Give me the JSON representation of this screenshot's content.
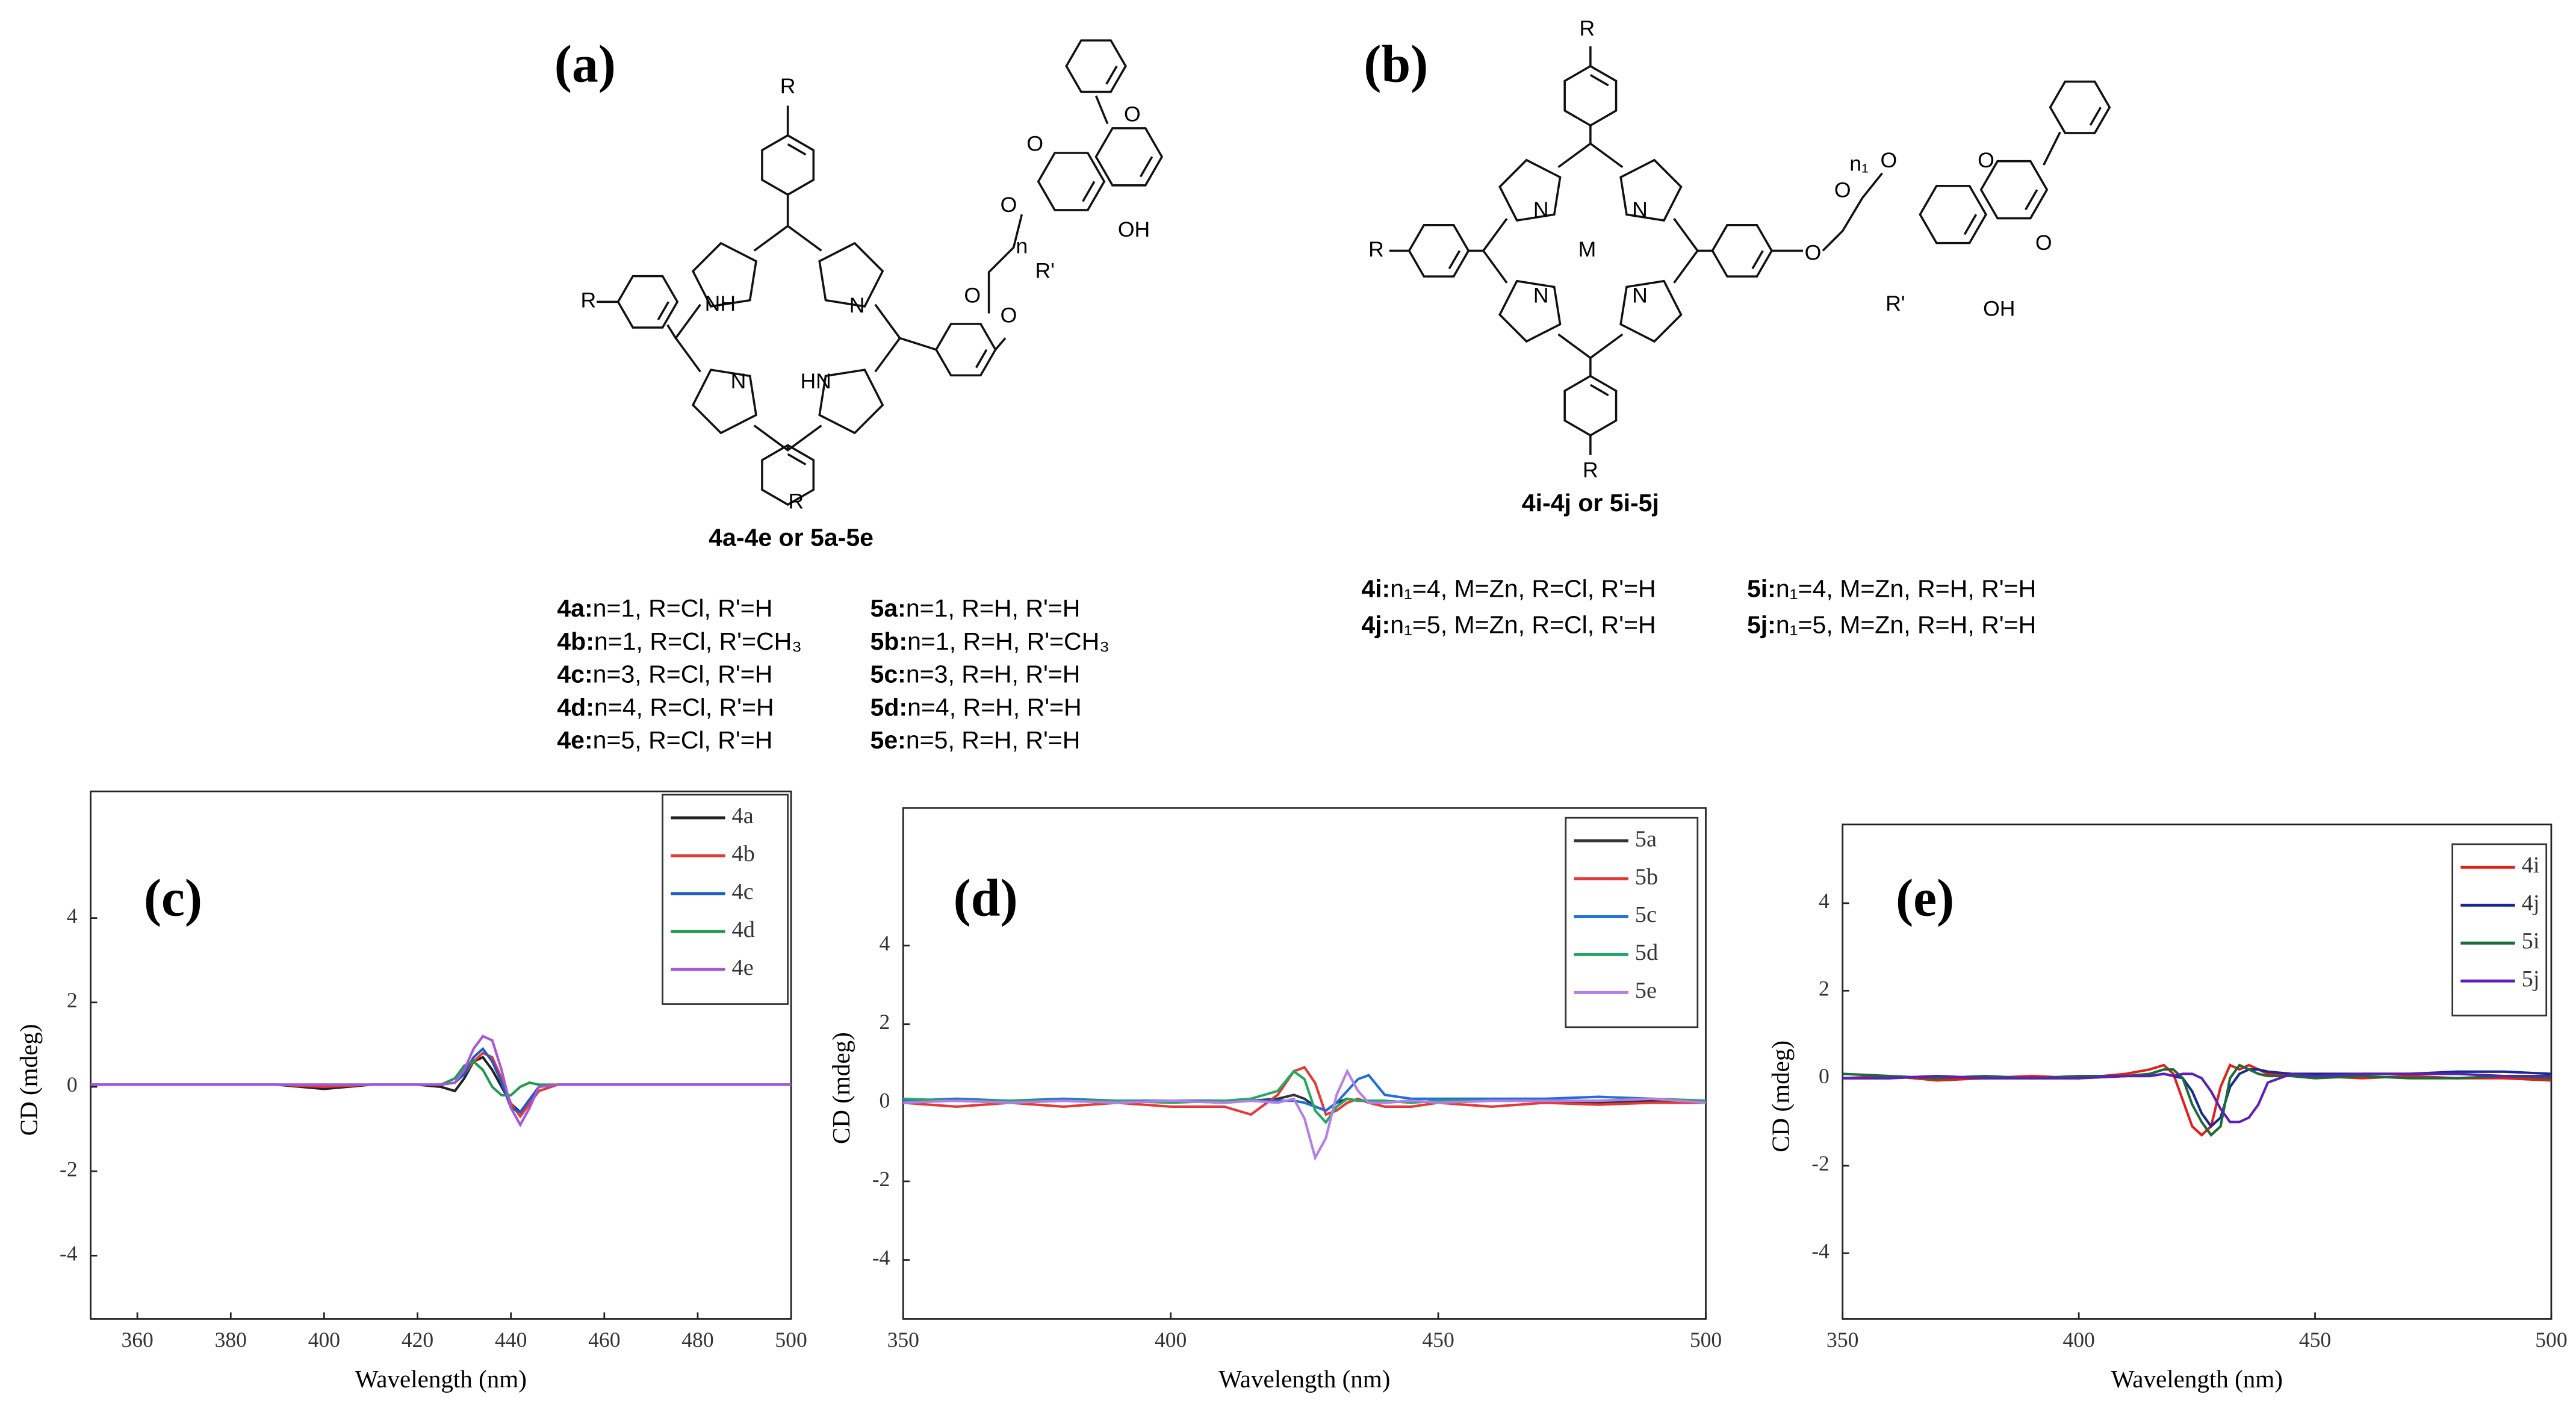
{
  "structures": {
    "a": {
      "label": "(a)",
      "atoms": [
        "R",
        "R",
        "R",
        "NH",
        "N",
        "N",
        "HN",
        "O",
        "O",
        "OH",
        "O",
        "O",
        "O",
        "n",
        "R'"
      ],
      "caption": "4a-4e or 5a-5e",
      "compounds": [
        {
          "id": "4a:",
          "desc": "n=1, R=Cl, R'=H"
        },
        {
          "id": "4b:",
          "desc": "n=1, R=Cl, R'=CH₃"
        },
        {
          "id": "4c:",
          "desc": "n=3, R=Cl, R'=H"
        },
        {
          "id": "4d:",
          "desc": "n=4, R=Cl, R'=H"
        },
        {
          "id": "4e:",
          "desc": "n=5, R=Cl, R'=H"
        },
        {
          "id": "5a:",
          "desc": "n=1,  R=H, R'=H"
        },
        {
          "id": "5b:",
          "desc": "n=1,  R=H, R'=CH₃"
        },
        {
          "id": "5c:",
          "desc": "n=3,  R=H, R'=H"
        },
        {
          "id": "5d:",
          "desc": "n=4,  R=H, R'=H"
        },
        {
          "id": "5e:",
          "desc": "n=5,  R=H, R'=H"
        }
      ]
    },
    "b": {
      "label": "(b)",
      "atoms": [
        "R",
        "R",
        "R",
        "N",
        "N",
        "N",
        "N",
        "M",
        "O",
        "O",
        "O",
        "O",
        "O",
        "OH",
        "n₁",
        "R'"
      ],
      "caption": "4i-4j or 5i-5j",
      "compounds": [
        {
          "id": "4i:",
          "desc": "n₁=4, M=Zn, R=Cl, R'=H"
        },
        {
          "id": "4j:",
          "desc": "n₁=5, M=Zn, R=Cl, R'=H"
        },
        {
          "id": "5i:",
          "desc": "n₁=4, M=Zn, R=H, R'=H"
        },
        {
          "id": "5j:",
          "desc": "n₁=5, M=Zn, R=H, R'=H"
        }
      ]
    }
  },
  "chart_data": [
    {
      "type": "line",
      "label": "(c)",
      "x_label": "Wavelength (nm)",
      "y_label": "CD (mdeg)",
      "xlim": [
        350,
        500
      ],
      "xticks": [
        360,
        380,
        400,
        420,
        440,
        460,
        480,
        500
      ],
      "ylim": [
        -5.5,
        7
      ],
      "yticks": [
        -4,
        -2,
        0,
        2,
        4
      ],
      "legend": "upper-right",
      "x": [
        350,
        360,
        370,
        380,
        390,
        400,
        410,
        420,
        425,
        428,
        430,
        432,
        434,
        436,
        438,
        440,
        442,
        444,
        446,
        450,
        460,
        470,
        480,
        490,
        500
      ],
      "series": [
        {
          "name": "4a",
          "color": "#222222",
          "values": [
            0.05,
            0.05,
            0.05,
            0.05,
            0.05,
            -0.05,
            0.05,
            0.05,
            0.0,
            -0.1,
            0.2,
            0.6,
            0.7,
            0.4,
            0.0,
            -0.4,
            -0.6,
            -0.3,
            0.0,
            0.05,
            0.05,
            0.05,
            0.05,
            0.05,
            0.05
          ]
        },
        {
          "name": "4b",
          "color": "#e53935",
          "values": [
            0.05,
            0.05,
            0.05,
            0.05,
            0.05,
            0.0,
            0.05,
            0.05,
            0.05,
            0.1,
            0.3,
            0.6,
            0.8,
            0.7,
            0.2,
            -0.4,
            -0.7,
            -0.4,
            -0.1,
            0.05,
            0.05,
            0.05,
            0.05,
            0.05,
            0.05
          ]
        },
        {
          "name": "4c",
          "color": "#1e5bc6",
          "values": [
            0.05,
            0.05,
            0.05,
            0.05,
            0.05,
            0.05,
            0.05,
            0.05,
            0.05,
            0.1,
            0.3,
            0.7,
            0.9,
            0.6,
            0.1,
            -0.5,
            -0.6,
            -0.3,
            0.0,
            0.05,
            0.05,
            0.05,
            0.05,
            0.05,
            0.05
          ]
        },
        {
          "name": "4d",
          "color": "#1f9a4c",
          "values": [
            0.05,
            0.05,
            0.05,
            0.05,
            0.05,
            0.05,
            0.05,
            0.05,
            0.05,
            0.2,
            0.5,
            0.6,
            0.4,
            0.0,
            -0.2,
            -0.2,
            0.0,
            0.1,
            0.05,
            0.05,
            0.05,
            0.05,
            0.05,
            0.05,
            0.05
          ]
        },
        {
          "name": "4e",
          "color": "#a855d8",
          "values": [
            0.05,
            0.05,
            0.05,
            0.05,
            0.05,
            0.05,
            0.05,
            0.05,
            0.05,
            0.1,
            0.4,
            0.9,
            1.2,
            1.1,
            0.4,
            -0.5,
            -0.9,
            -0.5,
            0.0,
            0.05,
            0.05,
            0.05,
            0.05,
            0.05,
            0.05
          ]
        }
      ]
    },
    {
      "type": "line",
      "label": "(d)",
      "x_label": "Wavelength (nm)",
      "y_label": "CD (mdeg)",
      "xlim": [
        350,
        500
      ],
      "xticks": [
        350,
        400,
        450,
        500
      ],
      "ylim": [
        -5.5,
        7.5
      ],
      "yticks": [
        -4,
        -2,
        0,
        2,
        4
      ],
      "legend": "upper-right",
      "x": [
        350,
        360,
        370,
        380,
        390,
        400,
        410,
        415,
        420,
        423,
        425,
        427,
        429,
        431,
        433,
        435,
        437,
        440,
        445,
        450,
        460,
        470,
        480,
        490,
        500
      ],
      "series": [
        {
          "name": "5a",
          "color": "#333333",
          "values": [
            0.05,
            0.05,
            0.0,
            0.05,
            0.0,
            0.05,
            0.0,
            0.05,
            0.1,
            0.2,
            0.1,
            -0.1,
            -0.2,
            0.0,
            0.1,
            0.05,
            0.05,
            0.0,
            0.05,
            0.0,
            0.05,
            0.05,
            0.0,
            0.05,
            0.0
          ]
        },
        {
          "name": "5b",
          "color": "#e53935",
          "values": [
            0.0,
            -0.1,
            0.0,
            -0.1,
            0.0,
            -0.1,
            -0.1,
            -0.3,
            0.2,
            0.8,
            0.9,
            0.5,
            -0.3,
            -0.2,
            0.0,
            0.1,
            0.0,
            -0.1,
            -0.1,
            0.0,
            -0.1,
            0.0,
            -0.05,
            0.0,
            0.0
          ]
        },
        {
          "name": "5c",
          "color": "#1e6fd9",
          "values": [
            0.05,
            0.1,
            0.05,
            0.1,
            0.05,
            0.05,
            0.05,
            0.05,
            0.05,
            0.05,
            0.0,
            -0.1,
            -0.2,
            0.0,
            0.3,
            0.6,
            0.7,
            0.2,
            0.1,
            0.1,
            0.1,
            0.1,
            0.15,
            0.1,
            0.05
          ]
        },
        {
          "name": "5d",
          "color": "#21a862",
          "values": [
            0.1,
            0.05,
            0.05,
            0.05,
            0.05,
            0.0,
            0.05,
            0.1,
            0.3,
            0.8,
            0.6,
            -0.2,
            -0.5,
            -0.1,
            0.1,
            0.05,
            0.05,
            0.05,
            0.0,
            0.05,
            0.05,
            0.05,
            0.05,
            0.1,
            0.05
          ]
        },
        {
          "name": "5e",
          "color": "#b57ee8",
          "values": [
            0.0,
            0.05,
            0.0,
            0.05,
            0.0,
            0.05,
            0.0,
            0.05,
            0.0,
            0.1,
            -0.4,
            -1.4,
            -0.9,
            0.2,
            0.8,
            0.3,
            0.0,
            0.0,
            0.05,
            0.0,
            0.05,
            0.05,
            0.05,
            0.1,
            0.0
          ]
        }
      ]
    },
    {
      "type": "line",
      "label": "(e)",
      "x_label": "Wavelength (nm)",
      "y_label": "CD (mdeg)",
      "xlim": [
        350,
        500
      ],
      "xticks": [
        350,
        400,
        450,
        500
      ],
      "ylim": [
        -5.5,
        5.8
      ],
      "yticks": [
        -4,
        -2,
        0,
        2,
        4
      ],
      "legend": "upper-right",
      "x": [
        350,
        360,
        370,
        380,
        390,
        400,
        410,
        415,
        418,
        420,
        422,
        424,
        426,
        428,
        430,
        432,
        434,
        436,
        438,
        440,
        445,
        450,
        460,
        470,
        480,
        490,
        500
      ],
      "series": [
        {
          "name": "4i",
          "color": "#e0201b",
          "values": [
            0.0,
            0.05,
            -0.05,
            0.0,
            0.05,
            0.0,
            0.1,
            0.2,
            0.3,
            0.1,
            -0.5,
            -1.1,
            -1.3,
            -1.1,
            -0.2,
            0.3,
            0.2,
            0.3,
            0.2,
            0.1,
            0.05,
            0.05,
            0.0,
            0.05,
            0.0,
            0.0,
            -0.05
          ]
        },
        {
          "name": "4j",
          "color": "#1a2a8c",
          "values": [
            0.0,
            0.0,
            0.05,
            0.0,
            0.0,
            0.0,
            0.05,
            0.05,
            0.1,
            0.05,
            0.0,
            -0.3,
            -0.8,
            -1.1,
            -0.9,
            -0.2,
            0.1,
            0.2,
            0.2,
            0.15,
            0.1,
            0.1,
            0.1,
            0.1,
            0.15,
            0.15,
            0.1
          ]
        },
        {
          "name": "5i",
          "color": "#1b6b3a",
          "values": [
            0.1,
            0.05,
            0.0,
            0.05,
            0.0,
            0.05,
            0.05,
            0.1,
            0.2,
            0.2,
            0.0,
            -0.6,
            -1.0,
            -1.3,
            -1.1,
            0.0,
            0.3,
            0.2,
            0.1,
            0.05,
            0.05,
            0.0,
            0.05,
            0.0,
            0.0,
            0.05,
            0.0
          ]
        },
        {
          "name": "5j",
          "color": "#5b21b6",
          "values": [
            0.0,
            0.0,
            0.05,
            0.0,
            0.0,
            0.0,
            0.05,
            0.05,
            0.1,
            0.05,
            0.1,
            0.1,
            0.0,
            -0.3,
            -0.7,
            -1.0,
            -1.0,
            -0.9,
            -0.6,
            -0.1,
            0.1,
            0.05,
            0.1,
            0.1,
            0.1,
            0.05,
            0.05
          ]
        }
      ]
    }
  ]
}
